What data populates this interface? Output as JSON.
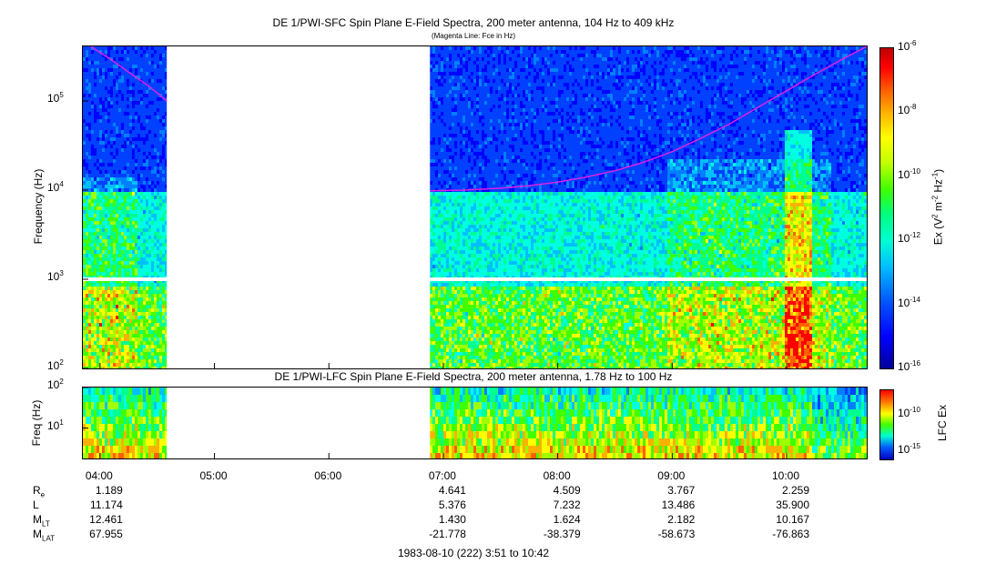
{
  "chart_data": [
    {
      "type": "heatmap",
      "title": "DE 1/PWI-SFC  Spin Plane E-Field Spectra, 200 meter antenna, 104 Hz to 409 kHz",
      "subtitle": "(Magenta Line: Fce in Hz)",
      "ylabel": "Frequency (Hz)",
      "yscale": "log",
      "ylim": [
        100,
        409000
      ],
      "yticks": [
        {
          "value": 100,
          "base": "10",
          "exp": "2"
        },
        {
          "value": 1000,
          "base": "10",
          "exp": "3"
        },
        {
          "value": 10000,
          "base": "10",
          "exp": "4"
        },
        {
          "value": 100000,
          "base": "10",
          "exp": "5"
        }
      ],
      "colorbar": {
        "label_parts": [
          "Ex (V",
          "2",
          " m",
          "-2",
          " Hz",
          "-1",
          ")"
        ],
        "scale": "log",
        "range": [
          1e-16,
          1e-06
        ],
        "ticks": [
          {
            "base": "10",
            "exp": "-6"
          },
          {
            "base": "10",
            "exp": "-8"
          },
          {
            "base": "10",
            "exp": "-10"
          },
          {
            "base": "10",
            "exp": "-12"
          },
          {
            "base": "10",
            "exp": "-14"
          },
          {
            "base": "10",
            "exp": "-16"
          }
        ]
      },
      "data_gaps": [
        [
          "04:35",
          "06:53"
        ],
        [
          "10:42",
          "10:42"
        ]
      ],
      "fce_line": {
        "name": "Fce",
        "color": "#e020e0",
        "segments": [
          {
            "x": [
              "03:55",
              "04:05",
              "04:15",
              "04:25",
              "04:35"
            ],
            "y": [
              409000,
              300000,
              210000,
              150000,
              100000
            ]
          },
          {
            "x": [
              "06:53",
              "07:10",
              "07:30",
              "07:45",
              "08:00",
              "08:15",
              "08:30",
              "08:45",
              "09:00",
              "09:15",
              "09:30",
              "09:45",
              "10:00",
              "10:15",
              "10:30",
              "10:42"
            ],
            "y": [
              9800,
              10000,
              10500,
              11200,
              12300,
              14000,
              16500,
              20500,
              27000,
              38000,
              55000,
              85000,
              130000,
              200000,
              300000,
              409000
            ]
          }
        ]
      }
    },
    {
      "type": "heatmap",
      "title": "DE 1/PWI-LFC  Spin Plane E-Field Spectra, 200 meter antenna, 1.78 Hz to 100 Hz",
      "ylabel": "Freq (Hz)",
      "yscale": "log",
      "ylim": [
        1.78,
        100
      ],
      "yticks": [
        {
          "value": 10,
          "base": "10",
          "exp": "1"
        },
        {
          "value": 100,
          "base": "10",
          "exp": "2"
        }
      ],
      "colorbar": {
        "label": "LFC Ex",
        "scale": "log",
        "ticks": [
          {
            "base": "10",
            "exp": "-10"
          },
          {
            "base": "10",
            "exp": "-15"
          }
        ]
      },
      "data_gaps": [
        [
          "04:35",
          "06:53"
        ]
      ]
    }
  ],
  "xaxis": {
    "ticks": [
      "04:00",
      "05:00",
      "06:00",
      "07:00",
      "08:00",
      "09:00",
      "10:00"
    ],
    "range": [
      "03:51",
      "10:42"
    ]
  },
  "ephemeris": {
    "rows": [
      {
        "label": "R",
        "sub": "e",
        "values": [
          "1.189",
          "",
          "",
          "4.641",
          "4.509",
          "3.767",
          "2.259"
        ]
      },
      {
        "label": "L",
        "sub": "",
        "values": [
          "11.174",
          "",
          "",
          "5.376",
          "7.232",
          "13.486",
          "35.900"
        ]
      },
      {
        "label": "M",
        "sub": "LT",
        "values": [
          "12.461",
          "",
          "",
          "1.430",
          "1.624",
          "2.182",
          "10.167"
        ]
      },
      {
        "label": "M",
        "sub": "LAT",
        "values": [
          "67.955",
          "",
          "",
          "-21.778",
          "-38.379",
          "-58.673",
          "-76.863"
        ]
      }
    ]
  },
  "footer": "1983-08-10 (222) 3:51 to 10:42"
}
